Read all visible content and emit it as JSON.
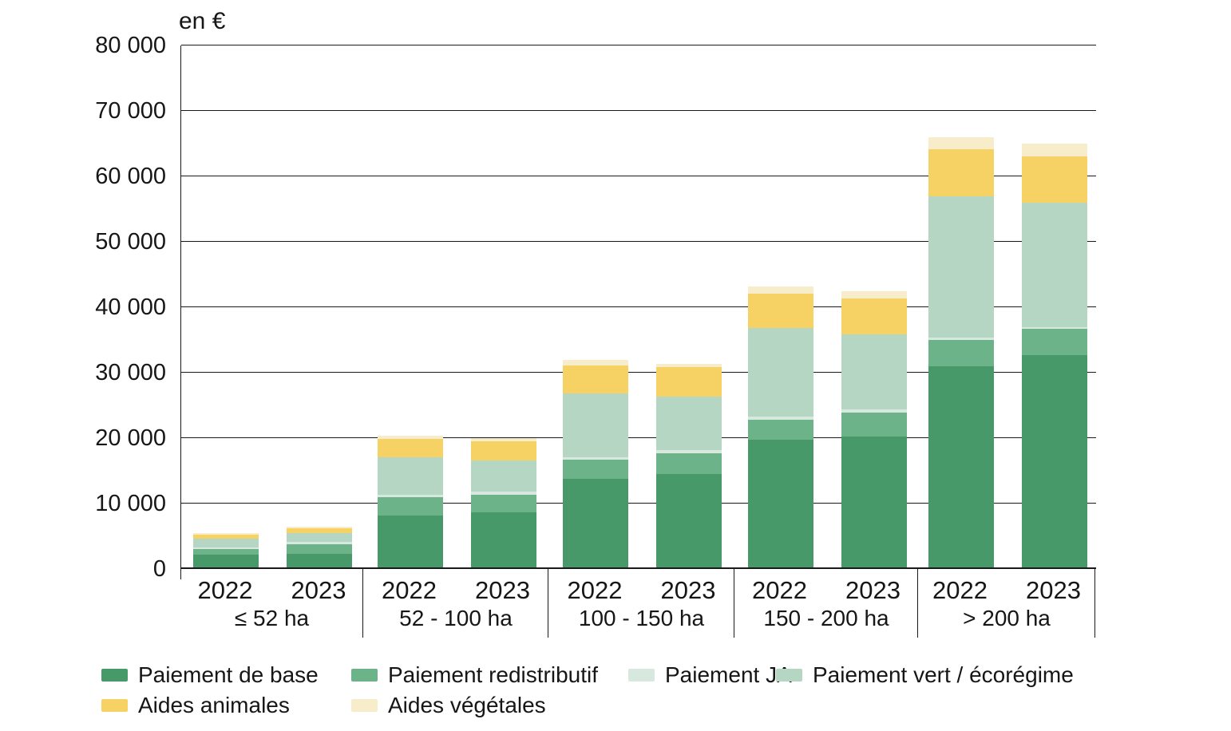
{
  "chart_data": {
    "type": "bar",
    "stacked": true,
    "title": "en €",
    "unit": "€",
    "ylim": [
      0,
      80000
    ],
    "ytick_step": 10000,
    "ytick_labels": [
      "0",
      "10 000",
      "20 000",
      "30 000",
      "40 000",
      "50 000",
      "60 000",
      "70 000",
      "80 000"
    ],
    "grid": true,
    "legend_position": "bottom",
    "series": [
      {
        "name": "Paiement de base",
        "color": "#48996a"
      },
      {
        "name": "Paiement redistributif",
        "color": "#6cb38a"
      },
      {
        "name": "Paiement JA",
        "color": "#d7e9de"
      },
      {
        "name": "Paiement vert / écorégime",
        "color": "#b4d6c3"
      },
      {
        "name": "Aides animales",
        "color": "#f5d263"
      },
      {
        "name": "Aides végétales",
        "color": "#f7edca"
      }
    ],
    "groups": [
      {
        "label": "≤ 52 ha",
        "bars": [
          {
            "year": "2022",
            "values": [
              2200,
              800,
              300,
              1300,
              600,
              300
            ]
          },
          {
            "year": "2023",
            "values": [
              2300,
              1500,
              350,
              1350,
              700,
              300
            ]
          }
        ]
      },
      {
        "label": "52 - 100 ha",
        "bars": [
          {
            "year": "2022",
            "values": [
              8200,
              2800,
              400,
              5700,
              2800,
              500
            ]
          },
          {
            "year": "2023",
            "values": [
              8600,
              2800,
              400,
              4800,
              2900,
              500
            ]
          }
        ]
      },
      {
        "label": "100 - 150 ha",
        "bars": [
          {
            "year": "2022",
            "values": [
              13800,
              2900,
              400,
              9700,
              4300,
              800
            ]
          },
          {
            "year": "2023",
            "values": [
              14500,
              3200,
              500,
              8200,
              4400,
              600
            ]
          }
        ]
      },
      {
        "label": "150 - 200 ha",
        "bars": [
          {
            "year": "2022",
            "values": [
              19800,
              3000,
              500,
              13500,
              5300,
              1100
            ]
          },
          {
            "year": "2023",
            "values": [
              20300,
              3600,
              500,
              11500,
              5400,
              1200
            ]
          }
        ]
      },
      {
        "label": "> 200 ha",
        "bars": [
          {
            "year": "2022",
            "values": [
              31000,
              4000,
              400,
              21600,
              7100,
              1900
            ]
          },
          {
            "year": "2023",
            "values": [
              32700,
              4000,
              300,
              19000,
              7000,
              2000
            ]
          }
        ]
      }
    ]
  }
}
